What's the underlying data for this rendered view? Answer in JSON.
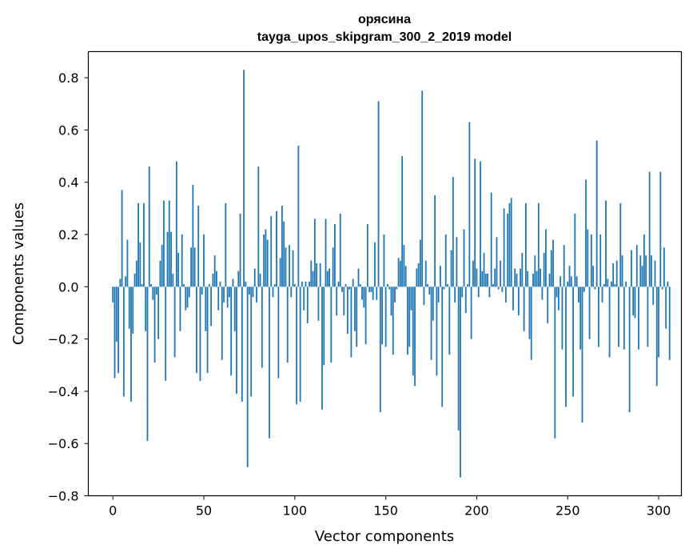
{
  "chart_data": {
    "type": "bar",
    "title": "орясина",
    "subtitle": "tayga_upos_skipgram_300_2_2019 model",
    "xlabel": "Vector components",
    "ylabel": "Components values",
    "xlim": [
      -13.5,
      312.5
    ],
    "ylim": [
      -0.8,
      0.9
    ],
    "xticks": [
      0,
      50,
      100,
      150,
      200,
      250,
      300
    ],
    "yticks": [
      -0.8,
      -0.6,
      -0.4,
      -0.2,
      0.0,
      0.2,
      0.4,
      0.6,
      0.8
    ],
    "ytick_labels": [
      "−0.8",
      "−0.6",
      "−0.4",
      "−0.2",
      "0.0",
      "0.2",
      "0.4",
      "0.6",
      "0.8"
    ],
    "bar_color": "#1f77b4",
    "grid": false,
    "values": [
      -0.06,
      -0.35,
      -0.21,
      -0.33,
      0.03,
      0.37,
      -0.42,
      0.04,
      0.18,
      -0.16,
      -0.44,
      -0.18,
      0.05,
      0.1,
      0.32,
      0.17,
      0.01,
      0.32,
      -0.17,
      -0.59,
      0.46,
      0.01,
      -0.05,
      -0.29,
      -0.03,
      -0.2,
      0.1,
      0.16,
      0.33,
      -0.36,
      0.21,
      0.33,
      0.21,
      0.05,
      -0.27,
      0.48,
      0.13,
      -0.17,
      0.2,
      0.01,
      -0.09,
      -0.08,
      -0.04,
      0.15,
      0.39,
      0.15,
      -0.33,
      0.31,
      -0.36,
      -0.03,
      0.2,
      -0.17,
      -0.33,
      0.01,
      -0.15,
      0.05,
      0.12,
      0.06,
      -0.09,
      0.02,
      -0.28,
      -0.06,
      0.32,
      -0.08,
      -0.04,
      -0.34,
      0.03,
      -0.17,
      -0.41,
      0.06,
      0.28,
      -0.44,
      0.83,
      0.02,
      -0.69,
      -0.03,
      -0.42,
      -0.04,
      0.07,
      -0.06,
      0.46,
      0.05,
      -0.31,
      0.2,
      0.22,
      0.18,
      -0.58,
      0.27,
      -0.04,
      0.01,
      0.29,
      -0.35,
      0.11,
      0.31,
      0.25,
      0.15,
      -0.29,
      0.16,
      -0.04,
      0.14,
      0.01,
      -0.45,
      0.54,
      -0.44,
      0.02,
      -0.09,
      0.02,
      -0.14,
      0.02,
      0.1,
      0.06,
      0.26,
      0.09,
      -0.13,
      0.09,
      -0.47,
      -0.3,
      0.26,
      0.06,
      0.07,
      -0.29,
      0.15,
      0.24,
      -0.11,
      0.02,
      0.28,
      -0.02,
      -0.11,
      0.01,
      -0.18,
      -0.01,
      -0.27,
      0.03,
      -0.17,
      -0.23,
      0.07,
      0.01,
      -0.05,
      -0.08,
      -0.22,
      0.24,
      -0.02,
      -0.02,
      -0.05,
      0.17,
      -0.05,
      0.71,
      -0.48,
      -0.22,
      0.2,
      -0.23,
      0.01,
      -0.01,
      -0.11,
      -0.26,
      -0.06,
      -0.01,
      0.11,
      0.1,
      0.5,
      0.16,
      0.08,
      -0.26,
      -0.23,
      -0.09,
      -0.34,
      -0.38,
      0.07,
      0.09,
      0.18,
      0.75,
      -0.07,
      0.1,
      0.01,
      -0.03,
      -0.28,
      -0.13,
      0.35,
      -0.34,
      -0.06,
      0.08,
      -0.46,
      -0.01,
      0.2,
      0.01,
      -0.26,
      0.14,
      0.42,
      -0.06,
      0.19,
      -0.55,
      -0.73,
      -0.04,
      0.22,
      -0.1,
      0.01,
      0.63,
      -0.2,
      0.1,
      0.49,
      0.07,
      -0.04,
      0.48,
      0.06,
      0.13,
      0.05,
      0.05,
      -0.04,
      0.36,
      0.01,
      0.07,
      0.19,
      -0.01,
      0.1,
      -0.02,
      0.3,
      -0.06,
      0.28,
      0.32,
      0.34,
      -0.09,
      0.07,
      0.05,
      -0.11,
      0.07,
      0.13,
      -0.17,
      0.32,
      0.06,
      -0.2,
      -0.28,
      0.05,
      0.12,
      0.06,
      0.32,
      0.07,
      -0.05,
      0.13,
      0.22,
      -0.14,
      0.05,
      0.14,
      0.18,
      -0.58,
      -0.04,
      -0.09,
      0.04,
      -0.24,
      0.16,
      -0.46,
      0.02,
      0.08,
      0.04,
      -0.42,
      0.28,
      0.04,
      -0.06,
      -0.24,
      -0.52,
      -0.02,
      0.41,
      0.22,
      -0.2,
      0.2,
      0.08,
      -0.01,
      0.56,
      -0.23,
      0.2,
      -0.06,
      0.01,
      0.33,
      0.03,
      -0.27,
      0.02,
      0.09,
      0.01,
      0.1,
      -0.23,
      0.32,
      0.12,
      -0.24,
      0.02,
      0.0,
      -0.48,
      0.14,
      -0.11,
      -0.12,
      0.16,
      -0.24,
      0.12,
      0.08,
      0.2,
      0.12,
      -0.23,
      0.44,
      0.12,
      -0.07,
      0.1,
      -0.38,
      -0.27,
      0.44,
      -0.01,
      0.15,
      -0.16,
      0.02,
      -0.28
    ]
  }
}
